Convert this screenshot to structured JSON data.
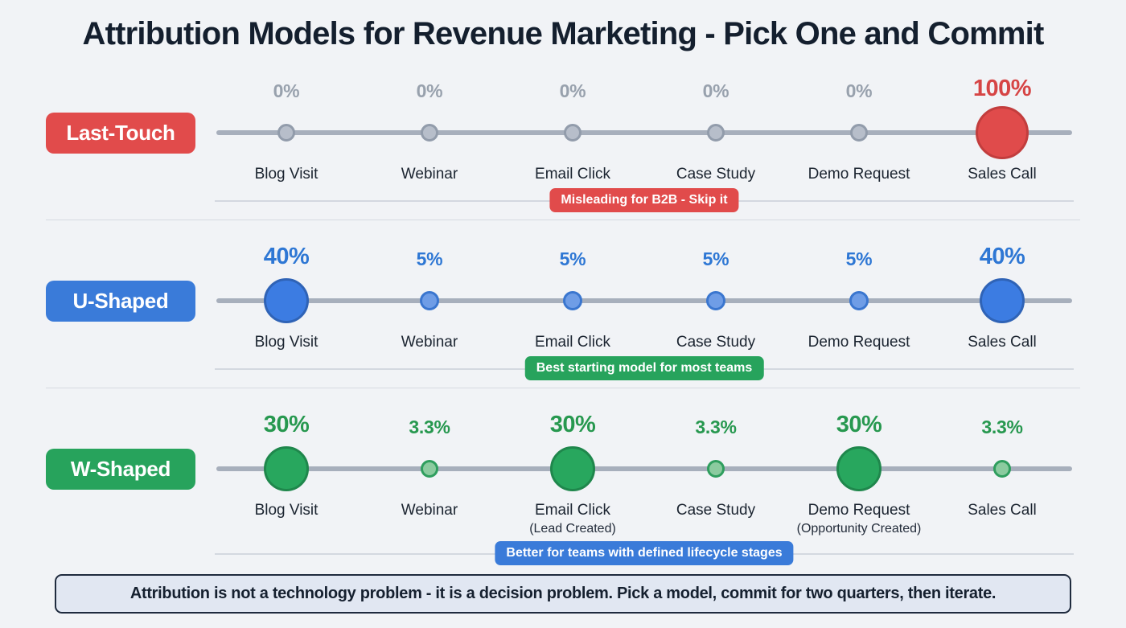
{
  "title": "Attribution Models for Revenue Marketing - Pick One and Commit",
  "colors": {
    "red_accent": "#e14b4b",
    "blue_accent": "#3a7bd9",
    "green_accent": "#27a35c",
    "gray_muted": "#98a1ad",
    "ink": "#15202f",
    "background": "#f1f3f6"
  },
  "rows": [
    {
      "label": "Last-Touch",
      "annotation": "Misleading for B2B - Skip it",
      "points": [
        {
          "pct": "0%",
          "label": "Blog Visit"
        },
        {
          "pct": "0%",
          "label": "Webinar"
        },
        {
          "pct": "0%",
          "label": "Email Click"
        },
        {
          "pct": "0%",
          "label": "Case Study"
        },
        {
          "pct": "0%",
          "label": "Demo Request"
        },
        {
          "pct": "100%",
          "label": "Sales Call"
        }
      ]
    },
    {
      "label": "U-Shaped",
      "annotation": "Best starting model for most teams",
      "points": [
        {
          "pct": "40%",
          "label": "Blog Visit"
        },
        {
          "pct": "5%",
          "label": "Webinar"
        },
        {
          "pct": "5%",
          "label": "Email Click"
        },
        {
          "pct": "5%",
          "label": "Case Study"
        },
        {
          "pct": "5%",
          "label": "Demo Request"
        },
        {
          "pct": "40%",
          "label": "Sales Call"
        }
      ]
    },
    {
      "label": "W-Shaped",
      "annotation": "Better for teams with defined lifecycle stages",
      "points": [
        {
          "pct": "30%",
          "label": "Blog Visit"
        },
        {
          "pct": "3.3%",
          "label": "Webinar"
        },
        {
          "pct": "30%",
          "label": "Email Click",
          "sublabel": "(Lead Created)"
        },
        {
          "pct": "3.3%",
          "label": "Case Study"
        },
        {
          "pct": "30%",
          "label": "Demo Request",
          "sublabel": "(Opportunity Created)"
        },
        {
          "pct": "3.3%",
          "label": "Sales Call"
        }
      ]
    }
  ],
  "footer": "Attribution is not a technology problem - it is a decision problem. Pick a model, commit for two quarters, then iterate."
}
